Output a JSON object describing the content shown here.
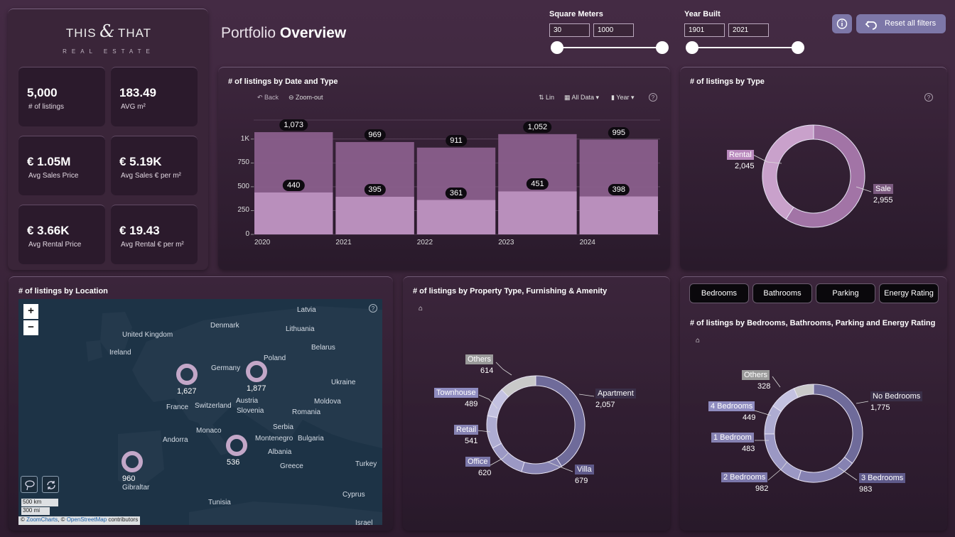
{
  "brand": {
    "name_left": "THIS",
    "ampersand": "&",
    "name_right": "THAT",
    "tagline": "REAL ESTATE"
  },
  "header": {
    "title_light": "Portfolio ",
    "title_bold": "Overview"
  },
  "kpis": [
    {
      "value": "5,000",
      "label": "# of listings"
    },
    {
      "value": "183.49",
      "label": "AVG m²"
    },
    {
      "value": "€ 1.05M",
      "label": "Avg Sales Price"
    },
    {
      "value": "€ 5.19K",
      "label": "Avg Sales € per m²"
    },
    {
      "value": "€ 3.66K",
      "label": "Avg Rental Price"
    },
    {
      "value": "€ 19.43",
      "label": "Avg Rental € per m²"
    }
  ],
  "filters": {
    "square_meters": {
      "label": "Square Meters",
      "min": "30",
      "max": "1000"
    },
    "year_built": {
      "label": "Year Built",
      "min": "1901",
      "max": "2021"
    },
    "info_icon": "info-icon",
    "reset_label": "Reset all filters"
  },
  "date_chart": {
    "title": "# of listings by Date and Type",
    "controls": {
      "back": "Back",
      "zoom_out": "Zoom-out",
      "lin": "Lin",
      "all_data": "All Data",
      "year": "Year",
      "help": "?"
    }
  },
  "type_chart": {
    "title": "# of listings by Type",
    "help": "?"
  },
  "map": {
    "title": "# of listings by Location",
    "zoom_in": "+",
    "zoom_out": "−",
    "help": "?",
    "scale_km": "500 km",
    "scale_mi": "300 mi",
    "attribution_prefix": "© ",
    "attribution_zc": "ZoomCharts",
    "attribution_mid": ", © ",
    "attribution_osm": "OpenStreetMap",
    "attribution_suffix": " contributors",
    "place_labels": [
      "Latvia",
      "Denmark",
      "Lithuania",
      "United Kingdom",
      "Belarus",
      "Ireland",
      "Poland",
      "Germany",
      "Ukraine",
      "Moldova",
      "France",
      "Switzerland",
      "Austria",
      "Slovenia",
      "Romania",
      "Serbia",
      "Monaco",
      "Andorra",
      "Montenegro",
      "Bulgaria",
      "Albania",
      "Greece",
      "Turkey",
      "Gibraltar",
      "Cyprus",
      "Tunisia",
      "Israel"
    ],
    "bubbles": [
      {
        "value": "1,627"
      },
      {
        "value": "1,877"
      },
      {
        "value": "536"
      },
      {
        "value": "960"
      }
    ]
  },
  "property_chart": {
    "title": "# of listings by Property Type, Furnishing & Amenity"
  },
  "bedrooms_panel": {
    "tabs": [
      "Bedrooms",
      "Bathrooms",
      "Parking",
      "Energy Rating"
    ],
    "title": "# of listings by Bedrooms, Bathrooms, Parking and Energy Rating"
  },
  "chart_data": [
    {
      "type": "bar",
      "title": "# of listings by Date and Type",
      "categories": [
        "2020",
        "2021",
        "2022",
        "2023",
        "2024"
      ],
      "series": [
        {
          "values": [
            1073,
            969,
            911,
            1052,
            995
          ],
          "color": "#8a5f8c"
        },
        {
          "values": [
            440,
            395,
            361,
            451,
            398
          ],
          "color": "#b98fbc"
        }
      ],
      "value_labels": [
        [
          "1,073",
          "969",
          "911",
          "1,052",
          "995"
        ],
        [
          "440",
          "395",
          "361",
          "451",
          "398"
        ]
      ],
      "ylim": [
        0,
        1200
      ],
      "yticks": [
        0,
        250,
        500,
        750,
        1000
      ],
      "ytick_labels": [
        "0",
        "250",
        "500",
        "750",
        "1K"
      ],
      "grid": true
    },
    {
      "type": "pie",
      "title": "# of listings by Type",
      "slices": [
        {
          "label": "Sale",
          "value": 2955,
          "display": "2,955",
          "color": "#a274a6"
        },
        {
          "label": "Rental",
          "value": 2045,
          "display": "2,045",
          "color": "#c9a1cb"
        }
      ]
    },
    {
      "type": "pie",
      "title": "# of listings by Property Type, Furnishing & Amenity",
      "slices": [
        {
          "label": "Apartment",
          "value": 2057,
          "display": "2,057",
          "color": "#6f6b9a"
        },
        {
          "label": "Villa",
          "value": 679,
          "display": "679",
          "color": "#8682b2"
        },
        {
          "label": "Office",
          "value": 620,
          "display": "620",
          "color": "#9b98c4"
        },
        {
          "label": "Retail",
          "value": 541,
          "display": "541",
          "color": "#aeacd2"
        },
        {
          "label": "Townhouse",
          "value": 489,
          "display": "489",
          "color": "#c3c1e0"
        },
        {
          "label": "Others",
          "value": 614,
          "display": "614",
          "color": "#c9c9c9"
        }
      ]
    },
    {
      "type": "pie",
      "title": "# of listings by Bedrooms, Bathrooms, Parking and Energy Rating",
      "slices": [
        {
          "label": "No Bedrooms",
          "value": 1775,
          "display": "1,775",
          "color": "#6f6b9a"
        },
        {
          "label": "3 Bedrooms",
          "value": 983,
          "display": "983",
          "color": "#8682b2"
        },
        {
          "label": "2 Bedrooms",
          "value": 982,
          "display": "982",
          "color": "#9b98c4"
        },
        {
          "label": "1 Bedroom",
          "value": 483,
          "display": "483",
          "color": "#aeacd2"
        },
        {
          "label": "4 Bedrooms",
          "value": 449,
          "display": "449",
          "color": "#c3c1e0"
        },
        {
          "label": "Others",
          "value": 328,
          "display": "328",
          "color": "#c9c9c9"
        }
      ]
    }
  ]
}
